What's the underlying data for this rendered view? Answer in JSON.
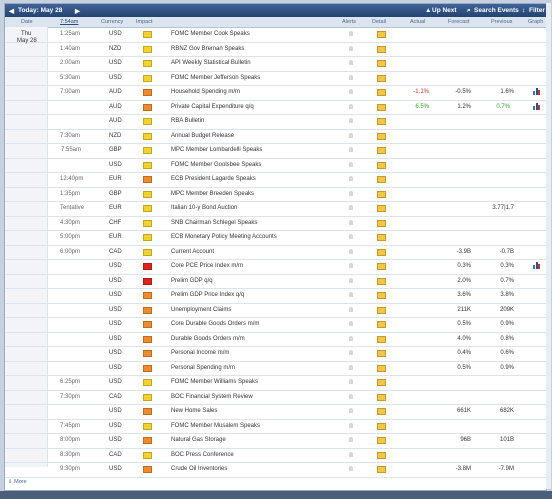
{
  "toolbar": {
    "today": "Today: May 28",
    "up_next": "Up Next",
    "search": "Search Events",
    "filter": "Filter"
  },
  "columns": {
    "date": "Date",
    "time": "7:54am",
    "currency": "Currency",
    "impact": "Impact",
    "alerts": "Alerts",
    "detail": "Detail",
    "actual": "Actual",
    "forecast": "Forecast",
    "previous": "Previous",
    "graph": "Graph"
  },
  "rows": [
    {
      "day": "Thu",
      "date": "May 28",
      "time": "1:25am",
      "currency": "USD",
      "impact": "low",
      "event": "FOMC Member Cook Speaks"
    },
    {
      "time": "1:40am",
      "currency": "NZD",
      "impact": "low",
      "event": "RBNZ Gov Breman Speaks"
    },
    {
      "time": "2:00am",
      "currency": "USD",
      "impact": "low",
      "event": "API Weekly Statistical Bulletin"
    },
    {
      "time": "5:30am",
      "currency": "USD",
      "impact": "low",
      "event": "FOMC Member Jefferson Speaks"
    },
    {
      "time": "7:00am",
      "currency": "AUD",
      "impact": "medium",
      "event": "Household Spending m/m",
      "actual": "-1.1%",
      "actual_class": "worse",
      "forecast": "-0.5%",
      "previous": "1.6%",
      "graph": true
    },
    {
      "currency": "AUD",
      "impact": "medium",
      "event": "Private Capital Expenditure q/q",
      "actual": "6.5%",
      "actual_class": "better",
      "forecast": "1.2%",
      "previous": "0.7%",
      "previous_class": "better",
      "graph": true
    },
    {
      "currency": "AUD",
      "impact": "low",
      "event": "RBA Bulletin"
    },
    {
      "time": "7:30am",
      "currency": "NZD",
      "impact": "low",
      "event": "Annual Budget Release"
    },
    {
      "time": "7:55am",
      "next": true,
      "currency": "GBP",
      "impact": "low",
      "event": "MPC Member Lombardelli Speaks"
    },
    {
      "currency": "USD",
      "impact": "low",
      "event": "FOMC Member Goolsbee Speaks"
    },
    {
      "time": "12:40pm",
      "currency": "EUR",
      "impact": "medium",
      "event": "ECB President Lagarde Speaks"
    },
    {
      "time": "1:35pm",
      "currency": "GBP",
      "impact": "low",
      "event": "MPC Member Breeden Speaks"
    },
    {
      "time": "Tentative",
      "currency": "EUR",
      "impact": "low",
      "event": "Italian 10-y Bond Auction",
      "previous": "3.77|1.7"
    },
    {
      "time": "4:30pm",
      "currency": "CHF",
      "impact": "low",
      "event": "SNB Chairman Schlegel Speaks"
    },
    {
      "time": "5:00pm",
      "currency": "EUR",
      "impact": "low",
      "event": "ECB Monetary Policy Meeting Accounts"
    },
    {
      "time": "6:00pm",
      "currency": "CAD",
      "impact": "low",
      "event": "Current Account",
      "forecast": "-3.9B",
      "previous": "-0.7B"
    },
    {
      "currency": "USD",
      "impact": "high",
      "event": "Core PCE Price Index m/m",
      "forecast": "0.3%",
      "previous": "0.3%",
      "graph": true
    },
    {
      "currency": "USD",
      "impact": "high",
      "event": "Prelim GDP q/q",
      "forecast": "2.0%",
      "previous": "0.7%"
    },
    {
      "currency": "USD",
      "impact": "medium",
      "event": "Prelim GDP Price Index q/q",
      "forecast": "3.6%",
      "previous": "3.8%"
    },
    {
      "currency": "USD",
      "impact": "medium",
      "event": "Unemployment Claims",
      "forecast": "211K",
      "previous": "209K"
    },
    {
      "currency": "USD",
      "impact": "medium",
      "event": "Core Durable Goods Orders m/m",
      "forecast": "0.5%",
      "previous": "0.9%"
    },
    {
      "currency": "USD",
      "impact": "medium",
      "event": "Durable Goods Orders m/m",
      "forecast": "4.0%",
      "previous": "0.8%"
    },
    {
      "currency": "USD",
      "impact": "medium",
      "event": "Personal Income m/m",
      "forecast": "0.4%",
      "previous": "0.6%"
    },
    {
      "currency": "USD",
      "impact": "medium",
      "event": "Personal Spending m/m",
      "forecast": "0.5%",
      "previous": "0.9%"
    },
    {
      "time": "6:25pm",
      "currency": "USD",
      "impact": "low",
      "event": "FOMC Member Williams Speaks"
    },
    {
      "time": "7:30pm",
      "currency": "CAD",
      "impact": "low",
      "event": "BOC Financial System Review"
    },
    {
      "currency": "USD",
      "impact": "medium",
      "event": "New Home Sales",
      "forecast": "661K",
      "previous": "682K"
    },
    {
      "time": "7:45pm",
      "currency": "USD",
      "impact": "low",
      "event": "FOMC Member Musalem Speaks"
    },
    {
      "time": "8:00pm",
      "currency": "USD",
      "impact": "medium",
      "event": "Natural Gas Storage",
      "forecast": "96B",
      "previous": "101B"
    },
    {
      "time": "8:30pm",
      "currency": "CAD",
      "impact": "low",
      "event": "BOC Press Conference"
    },
    {
      "time": "9:30pm",
      "currency": "USD",
      "impact": "medium",
      "event": "Crude Oil Inventories",
      "forecast": "-3.8M",
      "previous": "-7.9M"
    }
  ],
  "footer": "More"
}
